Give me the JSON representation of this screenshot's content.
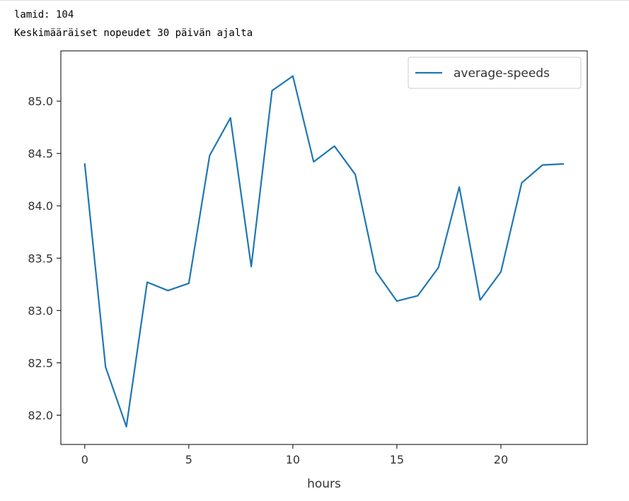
{
  "output": {
    "line1": "lamid: 104",
    "line2": "Keskimääräiset nopeudet 30 päivän ajalta"
  },
  "chart_data": {
    "type": "line",
    "title": "",
    "xlabel": "hours",
    "ylabel": "",
    "xlim": [
      -1.15,
      24.15
    ],
    "ylim": [
      81.72,
      85.48
    ],
    "x_ticks": [
      0,
      5,
      10,
      15,
      20
    ],
    "x_tick_labels": [
      "0",
      "5",
      "10",
      "15",
      "20"
    ],
    "y_ticks": [
      82.0,
      82.5,
      83.0,
      83.5,
      84.0,
      84.5,
      85.0
    ],
    "y_tick_labels": [
      "82.0",
      "82.5",
      "83.0",
      "83.5",
      "84.0",
      "84.5",
      "85.0"
    ],
    "grid": false,
    "legend_position": "upper right",
    "series": [
      {
        "name": "average-speeds",
        "color": "#1f77b4",
        "x": [
          0,
          1,
          2,
          3,
          4,
          5,
          6,
          7,
          8,
          9,
          10,
          11,
          12,
          13,
          14,
          15,
          16,
          17,
          18,
          19,
          20,
          21,
          22,
          23
        ],
        "values": [
          84.4,
          82.46,
          81.89,
          83.27,
          83.19,
          83.26,
          84.48,
          84.84,
          83.42,
          85.1,
          85.24,
          84.42,
          84.57,
          84.3,
          83.37,
          83.09,
          83.14,
          83.41,
          84.18,
          83.1,
          83.37,
          84.22,
          84.39,
          84.4
        ]
      }
    ]
  }
}
